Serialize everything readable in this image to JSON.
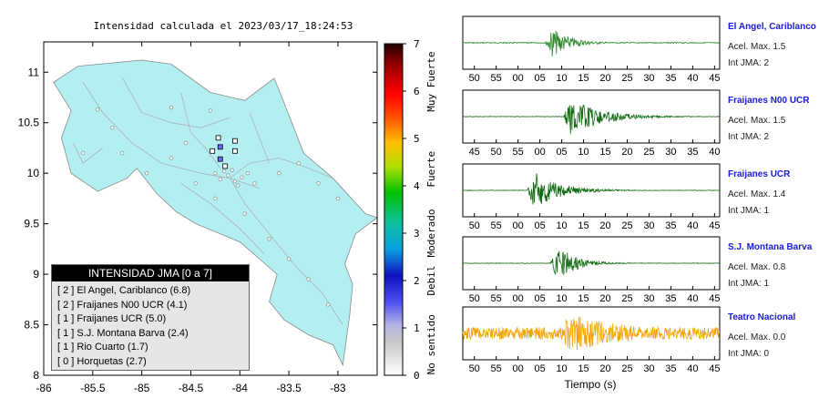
{
  "map": {
    "title": "Intensidad calculada el 2023/03/17_18:24:53",
    "lat_ticks": [
      "11",
      "10.5",
      "10",
      "9.5",
      "9",
      "8.5",
      "8"
    ],
    "lon_ticks": [
      "-86",
      "-85.5",
      "-85",
      "-84.5",
      "-84",
      "-83.5",
      "-83"
    ],
    "land_color": "#b3eef0",
    "station_markers": [
      {
        "lon": -84.22,
        "lat": 10.35,
        "color": "#ffffff"
      },
      {
        "lon": -84.2,
        "lat": 10.26,
        "color": "#6a6af0"
      },
      {
        "lon": -84.28,
        "lat": 10.22,
        "color": "#ffffff"
      },
      {
        "lon": -84.2,
        "lat": 10.14,
        "color": "#6a6af0"
      },
      {
        "lon": -84.15,
        "lat": 10.07,
        "color": "#ffffff"
      },
      {
        "lon": -84.05,
        "lat": 10.32,
        "color": "#ffffff"
      },
      {
        "lon": -84.05,
        "lat": 10.22,
        "color": "#ffffff"
      }
    ]
  },
  "colorbar": {
    "ticks": [
      "0",
      "1",
      "2",
      "3",
      "4",
      "5",
      "6",
      "7"
    ],
    "labels": [
      "No sentido",
      "Debil",
      "Moderado",
      "Fuerte",
      "Muy Fuerte"
    ]
  },
  "legend": {
    "header": "INTENSIDAD JMA [0 a 7]",
    "rows": [
      "[ 2 ]  El Angel, Cariblanco (6.8)",
      "[ 2 ]  Fraijanes N00 UCR (4.1)",
      "[ 1 ]  Fraijanes UCR (5.0)",
      "[ 1 ]  S.J. Montana Barva (2.4)",
      "[ 1 ]  Rio Cuarto (1.7)",
      "[ 0 ]  Horquetas (2.7)"
    ]
  },
  "traces": [
    {
      "name": "El Angel, Cariblanco",
      "accel": "Acel. Max. 1.5",
      "jma": "Int JMA: 2",
      "color": "#2e8b2e",
      "ticks": [
        "50",
        "55",
        "00",
        "05",
        "10",
        "15",
        "20",
        "25",
        "30",
        "35",
        "40",
        "45"
      ],
      "onset": 0.32,
      "peak": 0.6,
      "decay": 0.05,
      "noise": 0.02
    },
    {
      "name": "Fraijanes N00 UCR",
      "accel": "Acel. Max. 1.5",
      "jma": "Int JMA: 2",
      "color": "#0f6b0f",
      "ticks": [
        "45",
        "50",
        "55",
        "00",
        "05",
        "10",
        "15",
        "20",
        "25",
        "30",
        "35",
        "40"
      ],
      "onset": 0.39,
      "peak": 0.75,
      "decay": 0.1,
      "noise": 0.01
    },
    {
      "name": "Fraijanes UCR",
      "accel": "Acel. Max. 1.4",
      "jma": "Int JMA: 1",
      "color": "#0f6b0f",
      "ticks": [
        "50",
        "55",
        "00",
        "05",
        "10",
        "15",
        "20",
        "25",
        "30",
        "35",
        "40",
        "45"
      ],
      "onset": 0.25,
      "peak": 0.75,
      "decay": 0.08,
      "noise": 0.01
    },
    {
      "name": "S.J. Montana Barva",
      "accel": "Acel. Max. 0.8",
      "jma": "Int JMA: 1",
      "color": "#0f6b0f",
      "ticks": [
        "50",
        "55",
        "00",
        "05",
        "10",
        "15",
        "20",
        "25",
        "30",
        "35",
        "40",
        "45"
      ],
      "onset": 0.34,
      "peak": 0.75,
      "decay": 0.05,
      "noise": 0.01
    },
    {
      "name": "Teatro Nacional",
      "accel": "Acel. Max. 0.0",
      "jma": "Int JMA: 0",
      "color": "#f5a300",
      "ticks": [
        "50",
        "55",
        "00",
        "05",
        "10",
        "15",
        "20",
        "25",
        "30",
        "35",
        "40",
        "45"
      ],
      "onset": 0.38,
      "peak": 0.8,
      "decay": 0.25,
      "noise": 0.25
    }
  ],
  "time_label": "Tiempo (s)"
}
